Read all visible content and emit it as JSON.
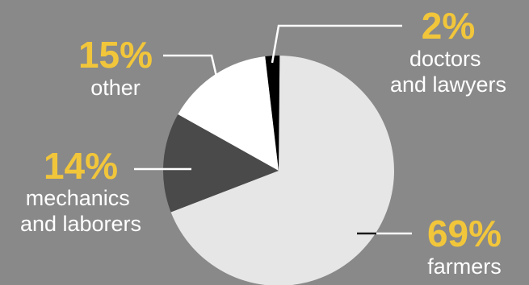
{
  "chart_data": {
    "type": "pie",
    "title": "",
    "slices": [
      {
        "label": "farmers",
        "value": 69,
        "display": "69%",
        "color": "#e6e6e6"
      },
      {
        "label": "mechanics\nand laborers",
        "value": 14,
        "display": "14%",
        "color": "#4a4a4a"
      },
      {
        "label": "other",
        "value": 15,
        "display": "15%",
        "color": "#ffffff"
      },
      {
        "label": "doctors\nand lawyers",
        "value": 2,
        "display": "2%",
        "color": "#000000"
      }
    ]
  },
  "colors": {
    "background": "#898989",
    "percent_text": "#f2c63a",
    "label_text": "#ffffff"
  }
}
